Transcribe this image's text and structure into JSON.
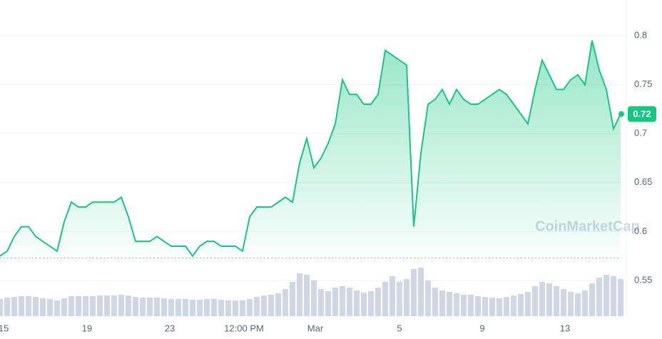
{
  "chart_data": {
    "type": "area",
    "x": [
      0,
      1,
      2,
      3,
      4,
      5,
      6,
      7,
      8,
      9,
      10,
      11,
      12,
      13,
      14,
      15,
      16,
      17,
      18,
      19,
      20,
      21,
      22,
      23,
      24,
      25,
      26,
      27,
      28,
      29,
      30,
      31,
      32,
      33,
      34,
      35,
      36,
      37,
      38,
      39,
      40,
      41,
      42,
      43,
      44,
      45,
      46,
      47,
      48,
      49,
      50,
      51,
      52,
      53,
      54,
      55,
      56,
      57,
      58,
      59,
      60,
      61,
      62,
      63,
      64,
      65,
      66,
      67,
      68,
      69,
      70,
      71,
      72,
      73,
      74,
      75,
      76,
      77,
      78,
      79,
      80,
      81,
      82,
      83,
      84,
      85,
      86,
      87
    ],
    "series": [
      {
        "name": "Price",
        "color": "#16c784",
        "values": [
          0.575,
          0.58,
          0.595,
          0.605,
          0.605,
          0.595,
          0.59,
          0.585,
          0.58,
          0.61,
          0.63,
          0.625,
          0.625,
          0.63,
          0.63,
          0.63,
          0.63,
          0.635,
          0.615,
          0.59,
          0.59,
          0.59,
          0.595,
          0.59,
          0.585,
          0.585,
          0.585,
          0.575,
          0.585,
          0.59,
          0.59,
          0.585,
          0.585,
          0.585,
          0.58,
          0.615,
          0.625,
          0.625,
          0.625,
          0.63,
          0.635,
          0.63,
          0.67,
          0.695,
          0.665,
          0.675,
          0.69,
          0.71,
          0.755,
          0.74,
          0.74,
          0.73,
          0.73,
          0.74,
          0.785,
          0.78,
          0.775,
          0.77,
          0.605,
          0.68,
          0.73,
          0.735,
          0.745,
          0.73,
          0.745,
          0.735,
          0.73,
          0.73,
          0.735,
          0.74,
          0.745,
          0.74,
          0.73,
          0.72,
          0.71,
          0.745,
          0.775,
          0.76,
          0.745,
          0.745,
          0.755,
          0.76,
          0.75,
          0.795,
          0.765,
          0.745,
          0.705,
          0.72
        ]
      },
      {
        "name": "Volume",
        "color": "#cfd6e4",
        "axis": "y2",
        "values": [
          24,
          26,
          27,
          28,
          28,
          27,
          25,
          24,
          22,
          25,
          28,
          28,
          28,
          28,
          29,
          29,
          29,
          30,
          29,
          27,
          26,
          26,
          26,
          25,
          24,
          24,
          24,
          23,
          23,
          24,
          24,
          23,
          22,
          22,
          22,
          24,
          27,
          29,
          30,
          32,
          38,
          48,
          60,
          58,
          50,
          38,
          35,
          40,
          42,
          40,
          36,
          33,
          35,
          40,
          48,
          56,
          48,
          52,
          66,
          68,
          50,
          40,
          36,
          34,
          32,
          30,
          30,
          28,
          27,
          26,
          25,
          27,
          29,
          31,
          34,
          42,
          48,
          46,
          42,
          38,
          34,
          32,
          36,
          46,
          54,
          58,
          56,
          52
        ]
      }
    ],
    "xlim": [
      0,
      87
    ],
    "xticks": [
      {
        "value": 0.5,
        "label": "15"
      },
      {
        "value": 12.2,
        "label": "19"
      },
      {
        "value": 23.8,
        "label": "23"
      },
      {
        "value": 34.2,
        "label": "12:00 PM"
      },
      {
        "value": 44.2,
        "label": "Mar"
      },
      {
        "value": 56,
        "label": "5"
      },
      {
        "value": 67.6,
        "label": "9"
      },
      {
        "value": 79.2,
        "label": "13"
      }
    ],
    "ylim": [
      0.5136,
      0.8364
    ],
    "yticks": [
      0.55,
      0.6,
      0.65,
      0.7,
      0.75,
      0.8
    ],
    "y2lim": [
      0,
      100
    ],
    "reference_line": 0.573,
    "current_value": 0.72,
    "watermark": "CoinMarketCap",
    "grid": true
  }
}
